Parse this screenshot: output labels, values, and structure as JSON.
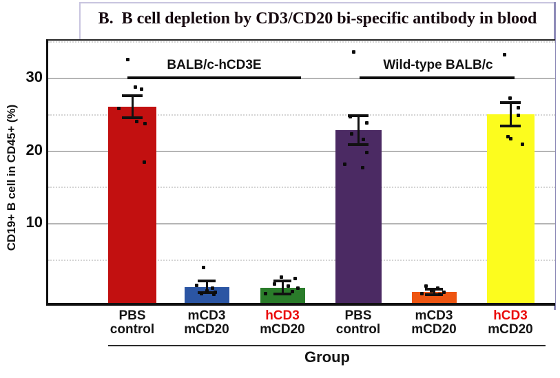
{
  "figure": {
    "title": "B.  B cell depletion by CD3/CD20 bi-specific antibody in blood"
  },
  "axes": {
    "y_label": "CD19+ B cell in CD45+ (%)",
    "x_label": "Group",
    "y_ticks": [
      "10",
      "20",
      "30"
    ]
  },
  "group_headers": [
    "BALB/c-hCD3E",
    "Wild-type BALB/c"
  ],
  "colors": {
    "tick_label": "#141414",
    "hcd3_label_red": "#ea0c0c",
    "grid_solid": "#b5b5b5",
    "grid_dotted": "#d4d4d4",
    "outer_border": "#c8c4df",
    "right_border": "#8e8bb8"
  },
  "chart_data": {
    "type": "bar",
    "title": "B.  B cell depletion by CD3/CD20 bi-specific antibody in blood",
    "xlabel": "Group",
    "ylabel": "CD19+ B cell in CD45+ (%)",
    "ylim": [
      0,
      35
    ],
    "yticks_solid": [
      10,
      20,
      30
    ],
    "yticks_dotted": [
      5,
      15,
      25,
      35
    ],
    "grid": "horizontal",
    "legend": "none",
    "groups": [
      "BALB/c-hCD3E",
      "Wild-type BALB/c"
    ],
    "categories": [
      "PBS control",
      "mCD3 mCD20",
      "hCD3 mCD20",
      "PBS control",
      "mCD3 mCD20",
      "hCD3 mCD20"
    ],
    "series": [
      {
        "group": "BALB/c-hCD3E",
        "label_line1": "PBS",
        "label_line2": "control",
        "label1_color": "#141414",
        "mean": 26.0,
        "sem": 1.5,
        "color": "#c21010",
        "points": [
          [
            -7,
            32.5
          ],
          [
            4,
            28.7
          ],
          [
            13,
            28.4
          ],
          [
            -20,
            25.8
          ],
          [
            6,
            24.0
          ],
          [
            18,
            23.7
          ],
          [
            17,
            18.4
          ]
        ]
      },
      {
        "group": "BALB/c-hCD3E",
        "label_line1": "mCD3",
        "label_line2": "mCD20",
        "label1_color": "#141414",
        "mean": 1.2,
        "sem": 0.8,
        "color": "#2b55a3",
        "points": [
          [
            -5,
            3.9
          ],
          [
            -15,
            1.4
          ],
          [
            8,
            1.0
          ],
          [
            0,
            0.7
          ],
          [
            12,
            0.5
          ],
          [
            -8,
            0.3
          ],
          [
            10,
            0.15
          ]
        ]
      },
      {
        "group": "BALB/c-hCD3E",
        "label_line1": "hCD3",
        "label_line2": "mCD20",
        "label1_color": "#ea0c0c",
        "mean": 1.1,
        "sem": 0.9,
        "color": "#2a7c2a",
        "points": [
          [
            -2,
            2.6
          ],
          [
            18,
            2.4
          ],
          [
            -12,
            1.6
          ],
          [
            8,
            1.3
          ],
          [
            22,
            1.0
          ],
          [
            14,
            0.6
          ],
          [
            -25,
            0.3
          ]
        ]
      },
      {
        "group": "Wild-type BALB/c",
        "label_line1": "PBS",
        "label_line2": "control",
        "label1_color": "#141414",
        "mean": 22.8,
        "sem": 2.0,
        "color": "#4b2a63",
        "points": [
          [
            -7,
            33.6
          ],
          [
            -12,
            24.6
          ],
          [
            12,
            23.8
          ],
          [
            -10,
            22.3
          ],
          [
            7,
            21.5
          ],
          [
            12,
            19.7
          ],
          [
            -20,
            18.1
          ],
          [
            6,
            17.6
          ]
        ]
      },
      {
        "group": "Wild-type BALB/c",
        "label_line1": "mCD3",
        "label_line2": "mCD20",
        "label1_color": "#141414",
        "mean": 0.5,
        "sem": 0.4,
        "color": "#ee5511",
        "points": [
          [
            -12,
            1.3
          ],
          [
            5,
            1.0
          ],
          [
            -4,
            0.7
          ],
          [
            14,
            0.5
          ],
          [
            -18,
            0.3
          ],
          [
            8,
            0.2
          ]
        ]
      },
      {
        "group": "Wild-type BALB/c",
        "label_line1": "hCD3",
        "label_line2": "mCD20",
        "label1_color": "#ea0c0c",
        "mean": 25.0,
        "sem": 1.6,
        "color": "#fcfc1e",
        "points": [
          [
            -9,
            33.2
          ],
          [
            -1,
            27.2
          ],
          [
            11,
            25.9
          ],
          [
            11,
            24.8
          ],
          [
            -4,
            21.9
          ],
          [
            0,
            21.6
          ],
          [
            17,
            20.9
          ]
        ]
      }
    ]
  }
}
